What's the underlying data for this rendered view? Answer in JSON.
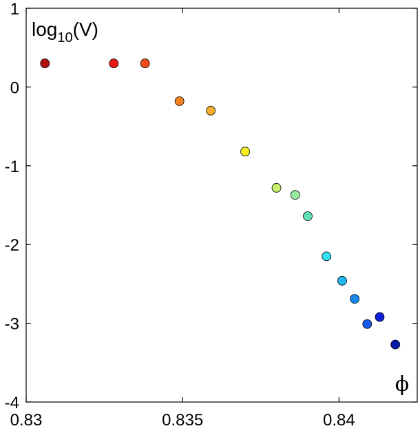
{
  "chart_data": {
    "type": "scatter",
    "title": "",
    "ylabel": "log10(V)",
    "ylabel_parts": {
      "base": "log",
      "sub": "10",
      "arg": "(V)"
    },
    "xlabel": "ϕ",
    "xlim": [
      0.83,
      0.8425
    ],
    "ylim": [
      -4,
      1
    ],
    "xticks": [
      0.83,
      0.835,
      0.84
    ],
    "xtick_labels": [
      "0.83",
      "0.835",
      "0.84"
    ],
    "yticks": [
      1,
      0,
      -1,
      -2,
      -3,
      -4
    ],
    "ytick_labels": [
      "1",
      "0",
      "-1",
      "-2",
      "-3",
      "-4"
    ],
    "grid": false,
    "legend": "none",
    "colormap": "jet",
    "points": [
      {
        "x": 0.8306,
        "y": 0.3,
        "color": "#b01010"
      },
      {
        "x": 0.8328,
        "y": 0.3,
        "color": "#e81a1a"
      },
      {
        "x": 0.8338,
        "y": 0.3,
        "color": "#f04a1c"
      },
      {
        "x": 0.8349,
        "y": -0.18,
        "color": "#f5821f"
      },
      {
        "x": 0.8359,
        "y": -0.3,
        "color": "#f5b030"
      },
      {
        "x": 0.837,
        "y": -0.82,
        "color": "#f7f020"
      },
      {
        "x": 0.838,
        "y": -1.28,
        "color": "#c8f070"
      },
      {
        "x": 0.8386,
        "y": -1.37,
        "color": "#98eca0"
      },
      {
        "x": 0.839,
        "y": -1.64,
        "color": "#60e0b8"
      },
      {
        "x": 0.8396,
        "y": -2.15,
        "color": "#30e0f0"
      },
      {
        "x": 0.8401,
        "y": -2.46,
        "color": "#20b8f0"
      },
      {
        "x": 0.8405,
        "y": -2.69,
        "color": "#1888f0"
      },
      {
        "x": 0.8409,
        "y": -3.01,
        "color": "#1858e8"
      },
      {
        "x": 0.8413,
        "y": -2.92,
        "color": "#1020d8"
      },
      {
        "x": 0.8418,
        "y": -3.27,
        "color": "#0a1aa8"
      }
    ]
  }
}
